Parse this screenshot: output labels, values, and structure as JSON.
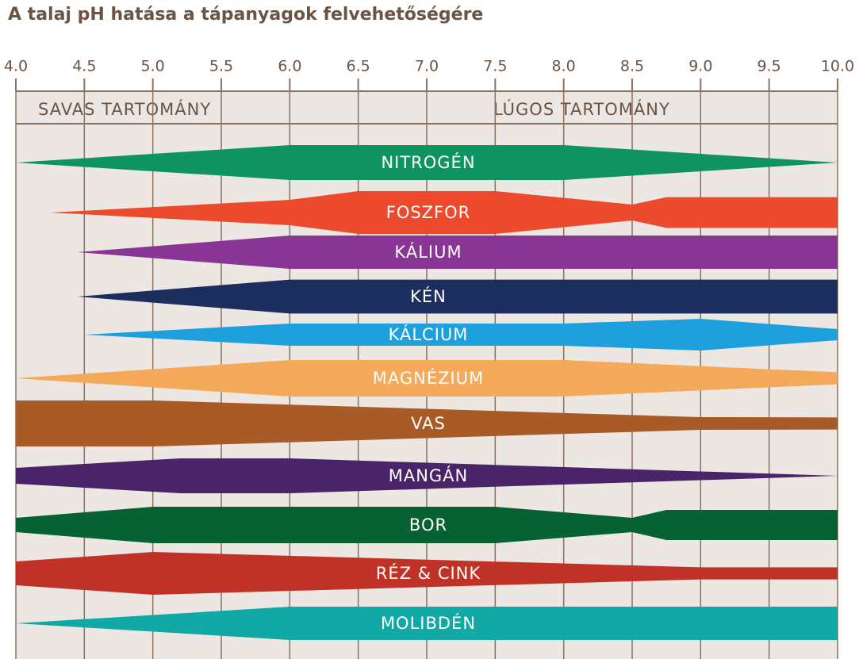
{
  "chart_data": {
    "type": "band",
    "title": "A talaj pH hatása a tápanyagok felvehetőségére",
    "annotations": [
      "SAVAS TARTOMÁNY",
      "LÚGOS TARTOMÁNY"
    ],
    "xlim": [
      4,
      10
    ],
    "xticks": [
      {
        "value": 4,
        "label": "4.0"
      },
      4.5,
      {
        "value": 5,
        "label": "5.0"
      },
      5.5,
      {
        "value": 6,
        "label": "6.0"
      },
      6.5,
      {
        "value": 7,
        "label": "7.0"
      },
      7.5,
      {
        "value": 8,
        "label": "8.0"
      },
      8.5,
      {
        "value": 9,
        "label": "9.0"
      },
      9.5,
      {
        "value": 10,
        "label": "10.0"
      }
    ],
    "grid": true,
    "series": [
      {
        "name": "NITROGÉN",
        "color": "#0f9360",
        "x": [
          4,
          6,
          8,
          10
        ],
        "values": [
          0,
          1.1,
          1.1,
          0
        ]
      },
      {
        "name": "FOSZFOR",
        "color": "#ec4a2c",
        "x": [
          4.25,
          6,
          6.5,
          7.5,
          8.5,
          8.75,
          10
        ],
        "values": [
          0,
          0.8,
          1.35,
          1.35,
          0.5,
          0.97,
          0.97
        ]
      },
      {
        "name": "KÁLIUM",
        "color": "#883595",
        "x": [
          4.45,
          6,
          10
        ],
        "values": [
          0,
          1.05,
          1.05
        ]
      },
      {
        "name": "KÉN",
        "color": "#1b2e5e",
        "x": [
          4.45,
          6,
          10
        ],
        "values": [
          0,
          1.07,
          1.07
        ]
      },
      {
        "name": "KÁLCIUM",
        "color": "#1ea0dc",
        "x": [
          4.5,
          6,
          8,
          9,
          10
        ],
        "values": [
          0,
          0.7,
          0.7,
          1,
          0.35
        ]
      },
      {
        "name": "MAGNÉZIUM",
        "color": "#f5a95a",
        "x": [
          4,
          6,
          8,
          10
        ],
        "values": [
          0,
          1.15,
          1.15,
          0.38
        ]
      },
      {
        "name": "VAS",
        "color": "#a85b26",
        "x": [
          4,
          5,
          9,
          10
        ],
        "values": [
          1.45,
          1.45,
          0.4,
          0.38
        ]
      },
      {
        "name": "MANGÁN",
        "color": "#4a2468",
        "x": [
          4,
          5.2,
          6,
          10
        ],
        "values": [
          0.5,
          1.1,
          1.1,
          0
        ]
      },
      {
        "name": "BOR",
        "color": "#066233",
        "x": [
          4,
          5,
          7.5,
          8.5,
          8.75,
          10
        ],
        "values": [
          0.45,
          1.15,
          1.15,
          0.45,
          0.95,
          0.95
        ]
      },
      {
        "name": "RÉZ & CINK",
        "color": "#c03227",
        "x": [
          4,
          5,
          9,
          10
        ],
        "values": [
          0.75,
          1.35,
          0.38,
          0.38
        ]
      },
      {
        "name": "MOLIBDÉN",
        "color": "#11a9a5",
        "x": [
          4,
          6,
          10
        ],
        "values": [
          0,
          1.05,
          1.05
        ]
      }
    ]
  }
}
